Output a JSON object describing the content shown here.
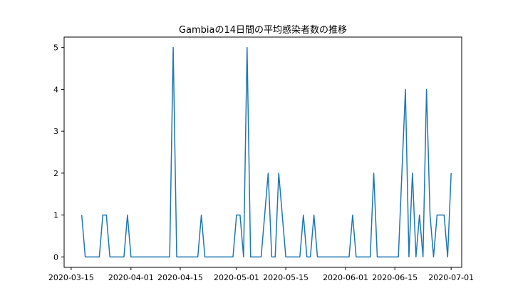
{
  "chart_data": {
    "type": "line",
    "title": "Gambiaの14日間の平均感染者数の推移",
    "xlabel": "",
    "ylabel": "",
    "x_start": "2020-03-18",
    "x_end": "2020-06-30",
    "xlim": [
      "2020-03-13",
      "2020-07-04"
    ],
    "ylim": [
      -0.25,
      5.25
    ],
    "x_ticks": [
      "2020-03-15",
      "2020-04-01",
      "2020-04-15",
      "2020-05-01",
      "2020-05-15",
      "2020-06-01",
      "2020-06-15",
      "2020-07-01"
    ],
    "y_ticks": [
      0,
      1,
      2,
      3,
      4,
      5
    ],
    "grid": false,
    "series": [
      {
        "color": "#1f77b4",
        "values": [
          1,
          0,
          0,
          0,
          0,
          0,
          1,
          1,
          0,
          0,
          0,
          0,
          0,
          1,
          0,
          0,
          0,
          0,
          0,
          0,
          0,
          0,
          0,
          0,
          0,
          0,
          5,
          0,
          0,
          0,
          0,
          0,
          0,
          0,
          1,
          0,
          0,
          0,
          0,
          0,
          0,
          0,
          0,
          0,
          1,
          1,
          0,
          5,
          0,
          0,
          0,
          0,
          1,
          2,
          0,
          0,
          2,
          1,
          0,
          0,
          0,
          0,
          0,
          1,
          0,
          0,
          1,
          0,
          0,
          0,
          0,
          0,
          0,
          0,
          0,
          0,
          0,
          1,
          0,
          0,
          0,
          0,
          0,
          2,
          0,
          0,
          0,
          0,
          0,
          0,
          0,
          2,
          4,
          0,
          2,
          0,
          1,
          0,
          4,
          1,
          0,
          1,
          1,
          1,
          0,
          2
        ]
      }
    ]
  }
}
